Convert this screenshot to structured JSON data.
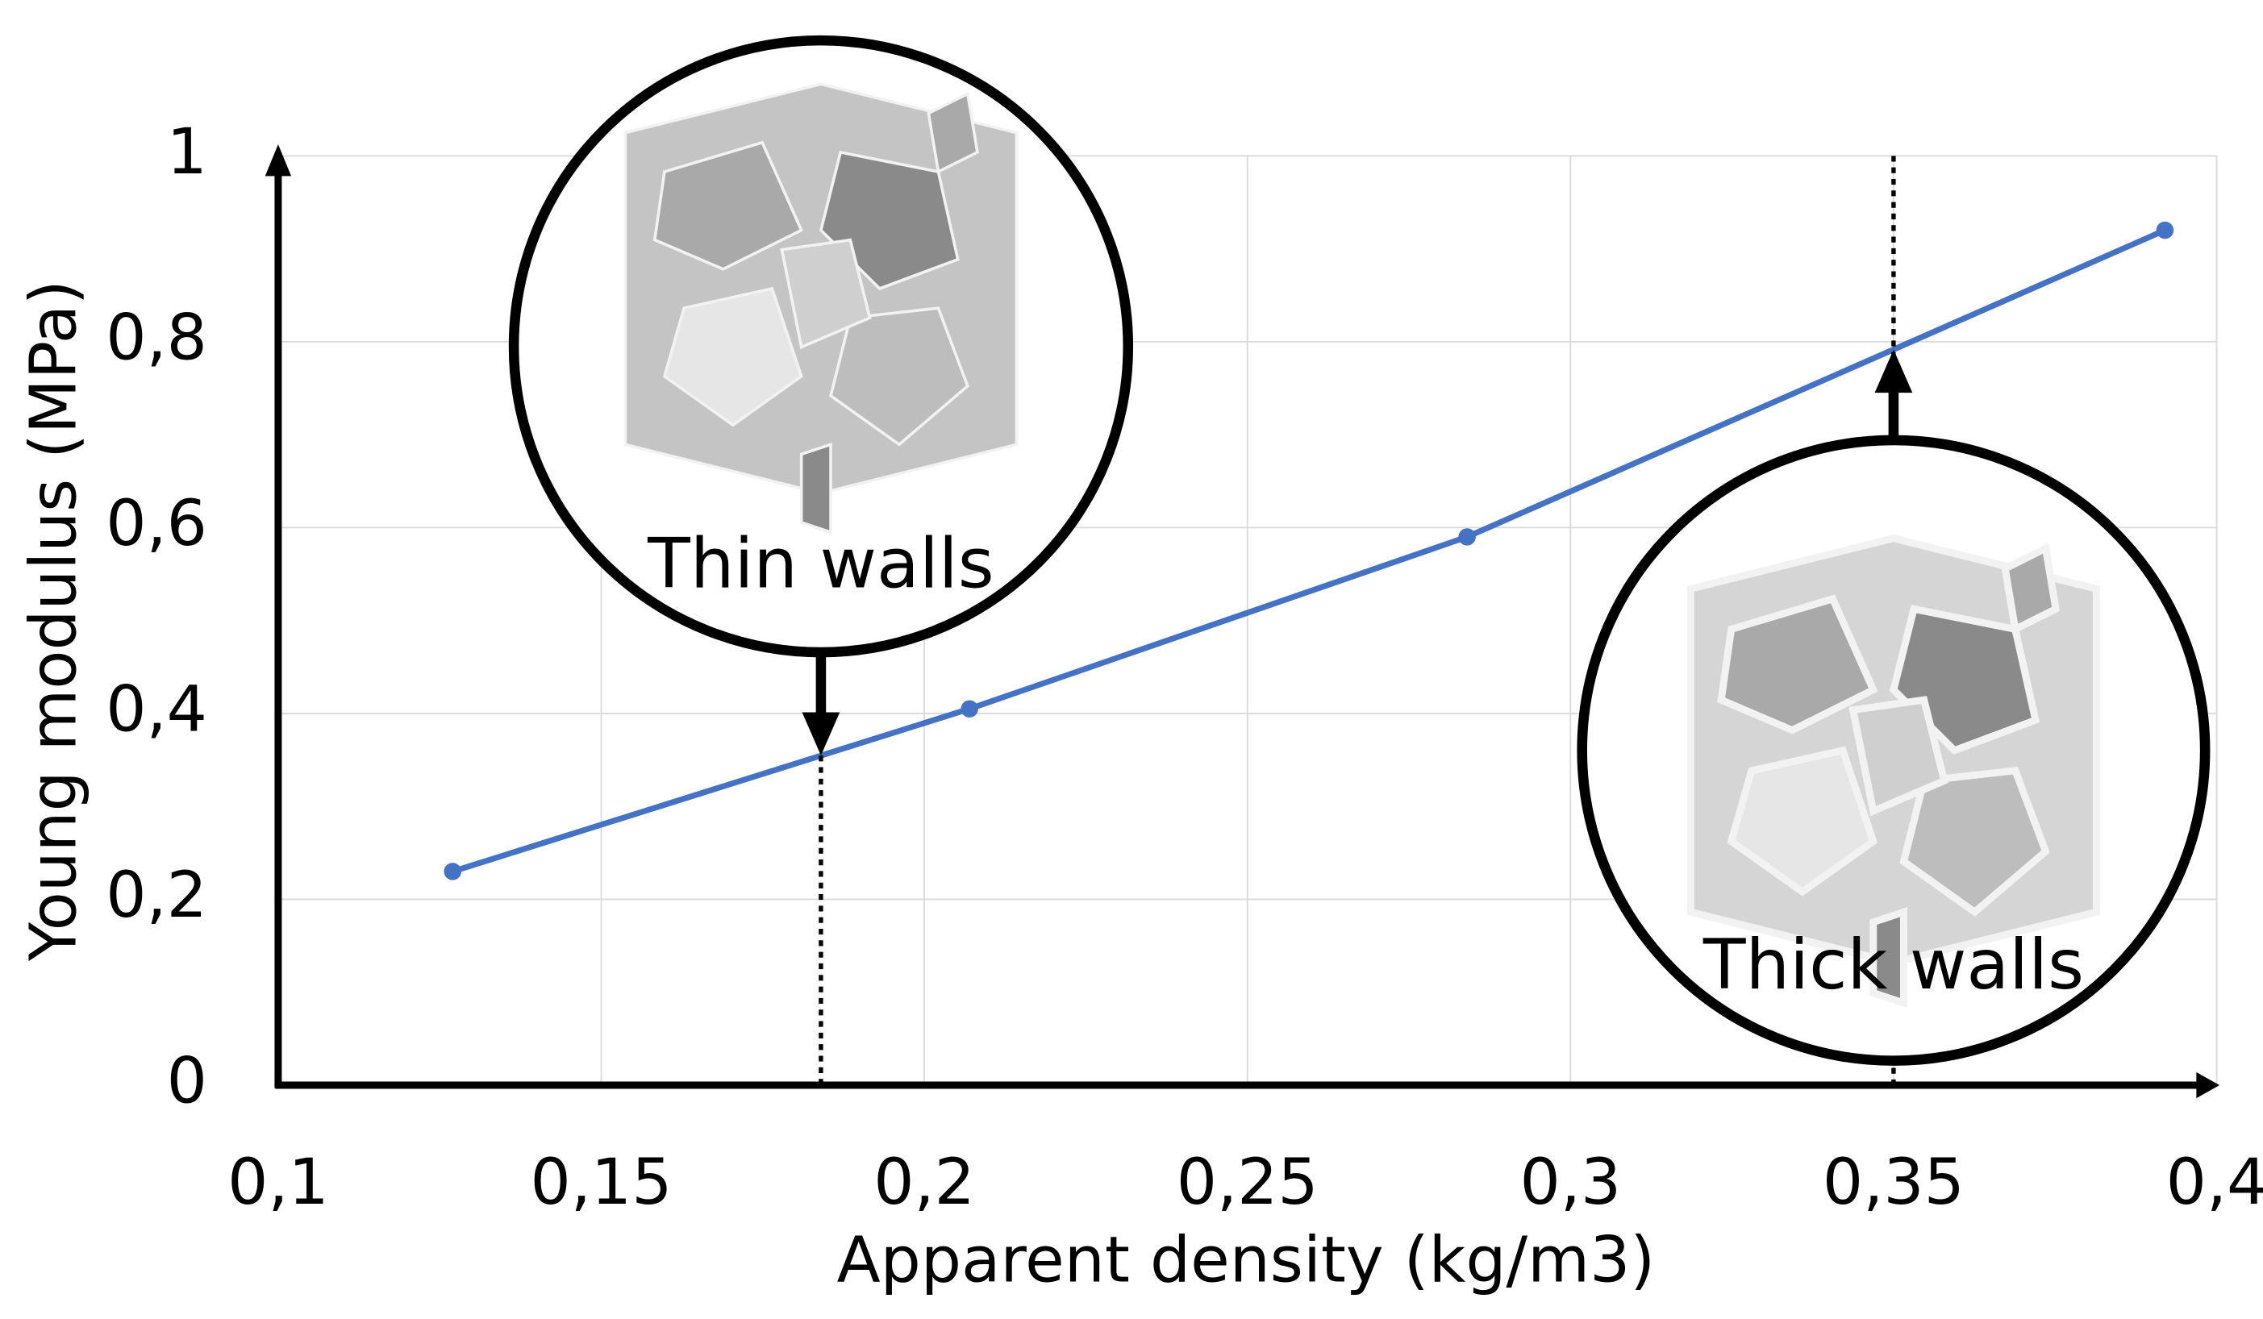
{
  "chart_data": {
    "type": "line",
    "x": [
      0.127,
      0.207,
      0.284,
      0.392
    ],
    "values": [
      0.23,
      0.405,
      0.59,
      0.92
    ],
    "color": "#4472c4",
    "xlabel": "Apparent density (kg/m3)",
    "ylabel": "Young modulus (MPa)",
    "xlim": [
      0.1,
      0.4
    ],
    "xticks": [
      {
        "value": 0.1,
        "label": "0,1"
      },
      {
        "value": 0.15,
        "label": "0,15"
      },
      {
        "value": 0.2,
        "label": "0,2"
      },
      {
        "value": 0.25,
        "label": "0,25"
      },
      {
        "value": 0.3,
        "label": "0,3"
      },
      {
        "value": 0.35,
        "label": "0,35"
      },
      {
        "value": 0.4,
        "label": "0,4"
      }
    ],
    "ylim": [
      0,
      1
    ],
    "yticks": [
      0,
      {
        "value": 0.2,
        "label": "0,2"
      },
      {
        "value": 0.4,
        "label": "0,4"
      },
      {
        "value": 0.6,
        "label": "0,6"
      },
      {
        "value": 0.8,
        "label": "0,8"
      },
      1
    ],
    "grid": true,
    "annotations": [
      {
        "text": "Thin walls",
        "x": 0.184
      },
      {
        "text": "Thick walls",
        "x": 0.35
      }
    ]
  }
}
